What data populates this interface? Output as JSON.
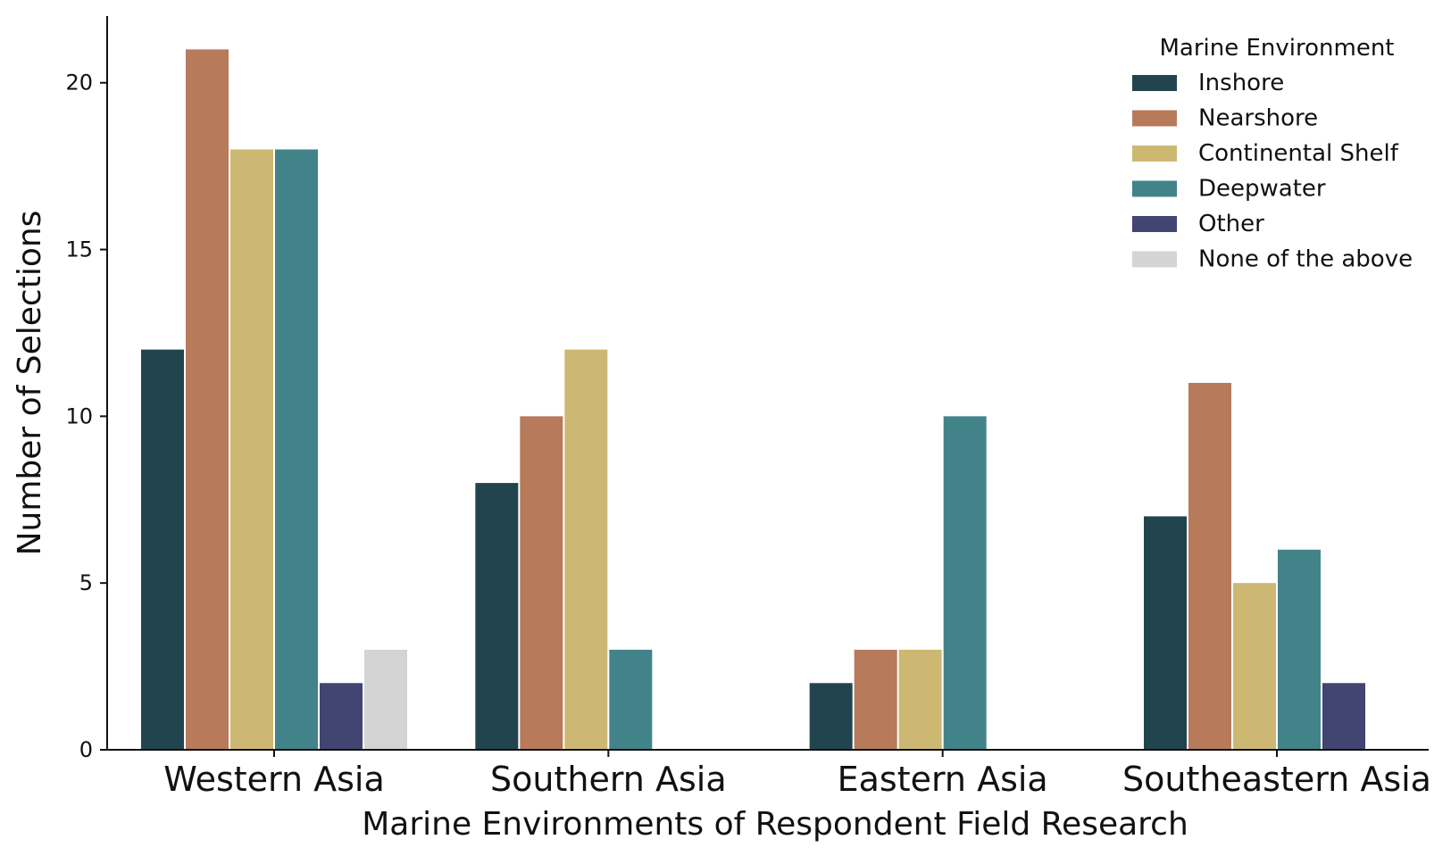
{
  "chart_data": {
    "type": "bar",
    "title": "",
    "xlabel": "Marine Environments of Respondent Field Research",
    "ylabel": "Number of Selections",
    "categories": [
      "Western Asia",
      "Southern Asia",
      "Eastern Asia",
      "Southeastern Asia"
    ],
    "series": [
      {
        "name": "Inshore",
        "color": "#22444f",
        "values": [
          12,
          8,
          2,
          7
        ]
      },
      {
        "name": "Nearshore",
        "color": "#b77a5b",
        "values": [
          21,
          10,
          3,
          11
        ]
      },
      {
        "name": "Continental Shelf",
        "color": "#cdb873",
        "values": [
          18,
          12,
          3,
          5
        ]
      },
      {
        "name": "Deepwater",
        "color": "#428389",
        "values": [
          18,
          3,
          10,
          6
        ]
      },
      {
        "name": "Other",
        "color": "#424472",
        "values": [
          2,
          0,
          0,
          2
        ]
      },
      {
        "name": "None of the above",
        "color": "#d4d4d4",
        "values": [
          3,
          0,
          0,
          0
        ]
      }
    ],
    "ylim": [
      0,
      22
    ],
    "yticks": [
      "0",
      "5",
      "10",
      "15",
      "20"
    ],
    "grid": false,
    "legend": {
      "title": "Marine Environment",
      "placement": "top-right"
    }
  }
}
